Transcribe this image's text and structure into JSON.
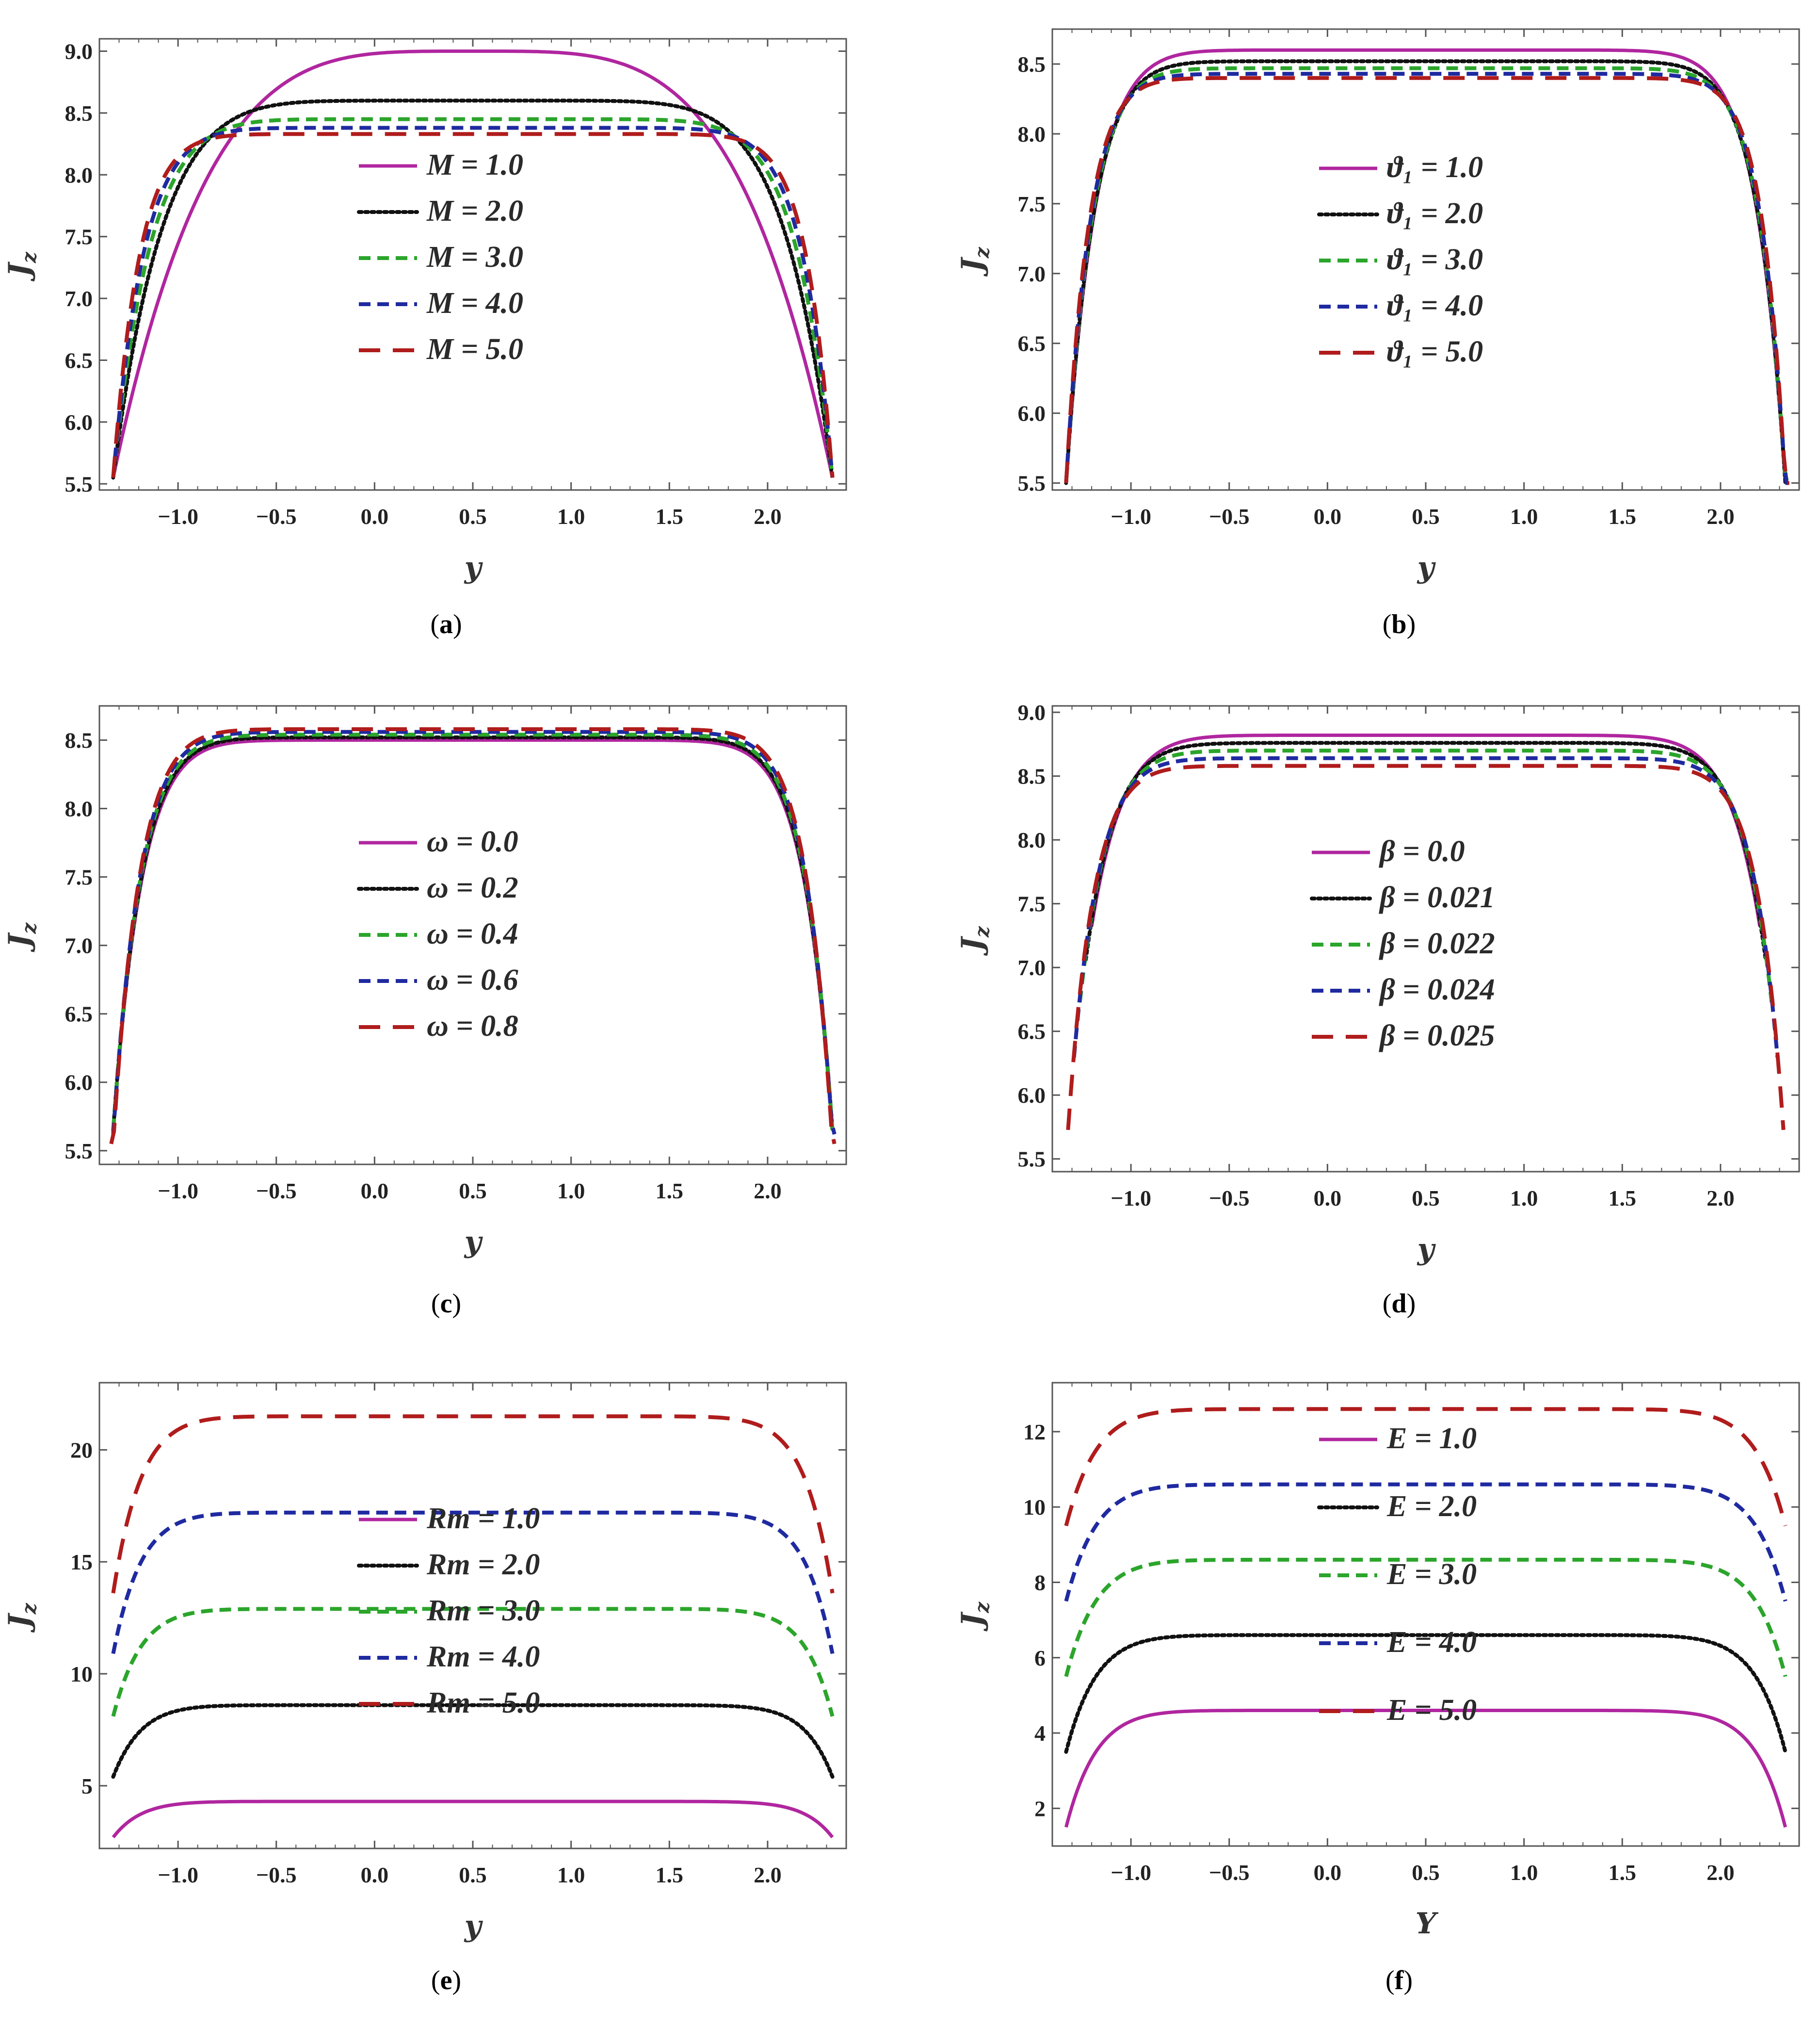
{
  "colors": {
    "magenta": "#B0269F",
    "black": "#111111",
    "green": "#2BA52B",
    "blue": "#1F2AA0",
    "red": "#B01C1C",
    "frame": "#555555"
  },
  "chart_data": [
    {
      "type": "line",
      "panel": "a",
      "caption": "a",
      "xlabel": "y",
      "ylabel": "J",
      "ylabel_sub": "z",
      "xlim": [
        -1.4,
        2.4
      ],
      "ylim": [
        5.45,
        9.1
      ],
      "xticks": [
        "−1.0",
        "−0.5",
        "0.0",
        "0.5",
        "1.0",
        "1.5",
        "2.0"
      ],
      "xtick_values": [
        -1.0,
        -0.5,
        0.0,
        0.5,
        1.0,
        1.5,
        2.0
      ],
      "yticks": [
        "5.5",
        "6.0",
        "6.5",
        "7.0",
        "7.5",
        "8.0",
        "8.5",
        "9.0"
      ],
      "ytick_values": [
        5.5,
        6.0,
        6.5,
        7.0,
        7.5,
        8.0,
        8.5,
        9.0
      ],
      "legend_position": "center",
      "series": [
        {
          "name": "M = 1.0",
          "style": "solid",
          "color": "magenta",
          "edge": 5.55,
          "plateau": 9.0,
          "sharpness": 1.0,
          "x_start": -1.33,
          "x_end": 2.33
        },
        {
          "name": "M = 2.0",
          "style": "dotted",
          "color": "black",
          "edge": 5.55,
          "plateau": 8.6,
          "sharpness": 2.7,
          "x_start": -1.33,
          "x_end": 2.33
        },
        {
          "name": "M = 3.0",
          "style": "dashed",
          "color": "green",
          "edge": 5.55,
          "plateau": 8.45,
          "sharpness": 3.8,
          "x_start": -1.33,
          "x_end": 2.33
        },
        {
          "name": "M = 4.0",
          "style": "dashed",
          "color": "blue",
          "edge": 5.55,
          "plateau": 8.38,
          "sharpness": 4.8,
          "x_start": -1.33,
          "x_end": 2.33
        },
        {
          "name": "M = 5.0",
          "style": "longdash",
          "color": "red",
          "edge": 5.55,
          "plateau": 8.33,
          "sharpness": 5.8,
          "x_start": -1.33,
          "x_end": 2.33
        }
      ]
    },
    {
      "type": "line",
      "panel": "b",
      "caption": "b",
      "xlabel": "y",
      "ylabel": "J",
      "ylabel_sub": "z",
      "xlim": [
        -1.4,
        2.4
      ],
      "ylim": [
        5.45,
        8.75
      ],
      "xticks": [
        "−1.0",
        "−0.5",
        "0.0",
        "0.5",
        "1.0",
        "1.5",
        "2.0"
      ],
      "xtick_values": [
        -1.0,
        -0.5,
        0.0,
        0.5,
        1.0,
        1.5,
        2.0
      ],
      "yticks": [
        "5.5",
        "6.0",
        "6.5",
        "7.0",
        "7.5",
        "8.0",
        "8.5"
      ],
      "ytick_values": [
        5.5,
        6.0,
        6.5,
        7.0,
        7.5,
        8.0,
        8.5
      ],
      "legend_position": "center-right",
      "series": [
        {
          "name": "ϑ₁ = 1.0",
          "style": "solid",
          "color": "magenta",
          "edge": 5.5,
          "plateau": 8.6,
          "sharpness": 5.0,
          "x_start": -1.33,
          "x_end": 2.33
        },
        {
          "name": "ϑ₁ = 2.0",
          "style": "dotted",
          "color": "black",
          "edge": 5.5,
          "plateau": 8.52,
          "sharpness": 5.4,
          "x_start": -1.33,
          "x_end": 2.33
        },
        {
          "name": "ϑ₁ = 3.0",
          "style": "dashed",
          "color": "green",
          "edge": 5.5,
          "plateau": 8.47,
          "sharpness": 5.8,
          "x_start": -1.33,
          "x_end": 2.34
        },
        {
          "name": "ϑ₁ = 4.0",
          "style": "dashed",
          "color": "blue",
          "edge": 5.5,
          "plateau": 8.43,
          "sharpness": 6.3,
          "x_start": -1.33,
          "x_end": 2.35
        },
        {
          "name": "ϑ₁ = 5.0",
          "style": "longdash",
          "color": "red",
          "edge": 5.5,
          "plateau": 8.4,
          "sharpness": 6.8,
          "x_start": -1.33,
          "x_end": 2.35
        }
      ]
    },
    {
      "type": "line",
      "panel": "c",
      "caption": "c",
      "xlabel": "y",
      "ylabel": "J",
      "ylabel_sub": "z",
      "xlim": [
        -1.4,
        2.4
      ],
      "ylim": [
        5.4,
        8.75
      ],
      "xticks": [
        "−1.0",
        "−0.5",
        "0.0",
        "0.5",
        "1.0",
        "1.5",
        "2.0"
      ],
      "xtick_values": [
        -1.0,
        -0.5,
        0.0,
        0.5,
        1.0,
        1.5,
        2.0
      ],
      "yticks": [
        "5.5",
        "6.0",
        "6.5",
        "7.0",
        "7.5",
        "8.0",
        "8.5"
      ],
      "ytick_values": [
        5.5,
        6.0,
        6.5,
        7.0,
        7.5,
        8.0,
        8.5
      ],
      "legend_position": "center",
      "series": [
        {
          "name": "ω = 0.0",
          "style": "solid",
          "color": "magenta",
          "edge": 5.65,
          "plateau": 8.5,
          "sharpness": 5.2,
          "x_start": -1.33,
          "x_end": 2.33
        },
        {
          "name": "ω = 0.2",
          "style": "dotted",
          "color": "black",
          "edge": 5.65,
          "plateau": 8.52,
          "sharpness": 5.3,
          "x_start": -1.33,
          "x_end": 2.33
        },
        {
          "name": "ω = 0.4",
          "style": "dashed",
          "color": "green",
          "edge": 5.65,
          "plateau": 8.54,
          "sharpness": 5.4,
          "x_start": -1.33,
          "x_end": 2.33
        },
        {
          "name": "ω = 0.6",
          "style": "dashed",
          "color": "blue",
          "edge": 5.62,
          "plateau": 8.56,
          "sharpness": 5.6,
          "x_start": -1.33,
          "x_end": 2.34
        },
        {
          "name": "ω = 0.8",
          "style": "longdash",
          "color": "red",
          "edge": 5.55,
          "plateau": 8.58,
          "sharpness": 5.8,
          "x_start": -1.34,
          "x_end": 2.34
        }
      ]
    },
    {
      "type": "line",
      "panel": "d",
      "caption": "d",
      "xlabel": "y",
      "ylabel": "J",
      "ylabel_sub": "z",
      "xlim": [
        -1.4,
        2.4
      ],
      "ylim": [
        5.4,
        9.05
      ],
      "xticks": [
        "−1.0",
        "−0.5",
        "0.0",
        "0.5",
        "1.0",
        "1.5",
        "2.0"
      ],
      "xtick_values": [
        -1.0,
        -0.5,
        0.0,
        0.5,
        1.0,
        1.5,
        2.0
      ],
      "yticks": [
        "5.5",
        "6.0",
        "6.5",
        "7.0",
        "7.5",
        "8.0",
        "8.5",
        "9.0"
      ],
      "ytick_values": [
        5.5,
        6.0,
        6.5,
        7.0,
        7.5,
        8.0,
        8.5,
        9.0
      ],
      "legend_position": "center",
      "series": [
        {
          "name": "β = 0.0",
          "style": "solid",
          "color": "magenta",
          "edge": 5.5,
          "plateau": 8.82,
          "sharpness": 4.4,
          "x_start": -1.2,
          "x_end": 2.2
        },
        {
          "name": "β = 0.021",
          "style": "dotted",
          "color": "black",
          "edge": 5.5,
          "plateau": 8.76,
          "sharpness": 4.8,
          "x_start": -1.23,
          "x_end": 2.23
        },
        {
          "name": "β = 0.022",
          "style": "dashed",
          "color": "green",
          "edge": 5.5,
          "plateau": 8.7,
          "sharpness": 5.2,
          "x_start": -1.26,
          "x_end": 2.26
        },
        {
          "name": "β = 0.024",
          "style": "dashed",
          "color": "blue",
          "edge": 5.5,
          "plateau": 8.64,
          "sharpness": 5.6,
          "x_start": -1.29,
          "x_end": 2.29
        },
        {
          "name": "β = 0.025",
          "style": "longdash",
          "color": "red",
          "edge": 5.5,
          "plateau": 8.58,
          "sharpness": 6.0,
          "x_start": -1.32,
          "x_end": 2.32
        }
      ]
    },
    {
      "type": "line",
      "panel": "e",
      "caption": "e",
      "xlabel": "y",
      "ylabel": "J",
      "ylabel_sub": "z",
      "xlim": [
        -1.4,
        2.4
      ],
      "ylim": [
        2.2,
        23.0
      ],
      "xticks": [
        "−1.0",
        "−0.5",
        "0.0",
        "0.5",
        "1.0",
        "1.5",
        "2.0"
      ],
      "xtick_values": [
        -1.0,
        -0.5,
        0.0,
        0.5,
        1.0,
        1.5,
        2.0
      ],
      "yticks": [
        "5",
        "10",
        "15",
        "20"
      ],
      "ytick_values": [
        5,
        10,
        15,
        20
      ],
      "legend_position": "center",
      "series": [
        {
          "name": "Rm = 1.0",
          "style": "solid",
          "color": "magenta",
          "edge": 2.7,
          "plateau": 4.3,
          "sharpness": 5.5,
          "x_start": -1.33,
          "x_end": 2.33
        },
        {
          "name": "Rm = 2.0",
          "style": "dotted",
          "color": "black",
          "edge": 5.4,
          "plateau": 8.6,
          "sharpness": 5.5,
          "x_start": -1.33,
          "x_end": 2.33
        },
        {
          "name": "Rm = 3.0",
          "style": "dashed",
          "color": "green",
          "edge": 8.1,
          "plateau": 12.9,
          "sharpness": 5.5,
          "x_start": -1.33,
          "x_end": 2.33
        },
        {
          "name": "Rm = 4.0",
          "style": "dashed",
          "color": "blue",
          "edge": 10.9,
          "plateau": 17.2,
          "sharpness": 5.5,
          "x_start": -1.33,
          "x_end": 2.33
        },
        {
          "name": "Rm = 5.0",
          "style": "longdash",
          "color": "red",
          "edge": 13.6,
          "plateau": 21.5,
          "sharpness": 5.5,
          "x_start": -1.33,
          "x_end": 2.33
        }
      ]
    },
    {
      "type": "line",
      "panel": "f",
      "caption": "f",
      "xlabel": "Y",
      "ylabel": "J",
      "ylabel_sub": "z",
      "xlim": [
        -1.4,
        2.4
      ],
      "ylim": [
        1.0,
        13.3
      ],
      "xticks": [
        "−1.0",
        "−0.5",
        "0.0",
        "0.5",
        "1.0",
        "1.5",
        "2.0"
      ],
      "xtick_values": [
        -1.0,
        -0.5,
        0.0,
        0.5,
        1.0,
        1.5,
        2.0
      ],
      "yticks": [
        "2",
        "4",
        "6",
        "8",
        "10",
        "12"
      ],
      "ytick_values": [
        2,
        4,
        6,
        8,
        10,
        12
      ],
      "legend_position": "center",
      "series": [
        {
          "name": "E = 1.0",
          "style": "solid",
          "color": "magenta",
          "edge": 1.5,
          "plateau": 4.6,
          "sharpness": 5.0,
          "x_start": -1.33,
          "x_end": 2.33
        },
        {
          "name": "E = 2.0",
          "style": "dotted",
          "color": "black",
          "edge": 3.5,
          "plateau": 6.6,
          "sharpness": 5.0,
          "x_start": -1.33,
          "x_end": 2.33
        },
        {
          "name": "E = 3.0",
          "style": "dashed",
          "color": "green",
          "edge": 5.5,
          "plateau": 8.6,
          "sharpness": 5.0,
          "x_start": -1.33,
          "x_end": 2.33
        },
        {
          "name": "E = 4.0",
          "style": "dashed",
          "color": "blue",
          "edge": 7.5,
          "plateau": 10.6,
          "sharpness": 5.0,
          "x_start": -1.33,
          "x_end": 2.33
        },
        {
          "name": "E = 5.0",
          "style": "longdash",
          "color": "red",
          "edge": 9.5,
          "plateau": 12.6,
          "sharpness": 5.0,
          "x_start": -1.33,
          "x_end": 2.33
        }
      ]
    }
  ]
}
